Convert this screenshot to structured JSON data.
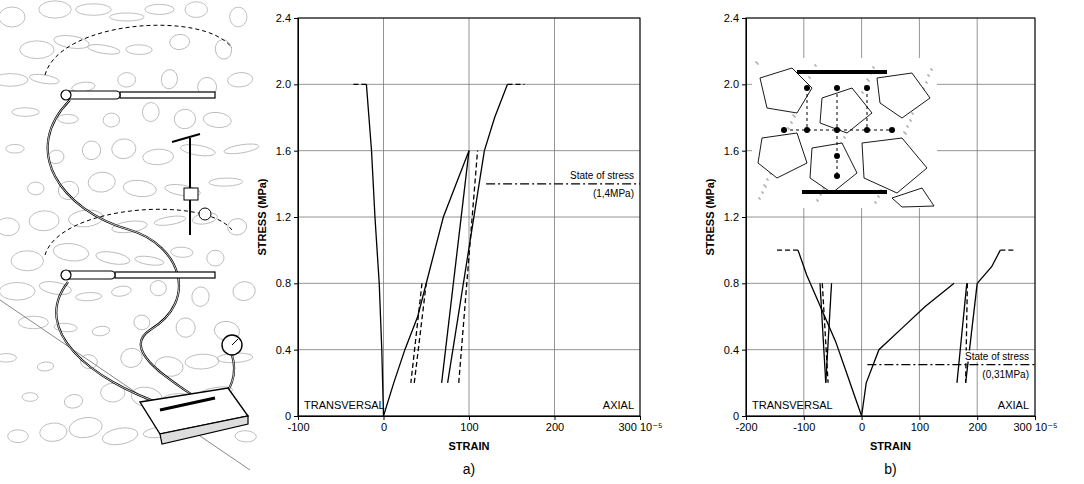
{
  "chart_data": [
    {
      "type": "line",
      "panel_label": "a)",
      "xlabel": "STRAIN",
      "ylabel": "STRESS (MPa)",
      "xlim": [
        -100,
        300
      ],
      "ylim": [
        0,
        2.4
      ],
      "xticks": [
        -100,
        0,
        100,
        200,
        {
          "value": 300,
          "label": "300 10⁻⁵"
        }
      ],
      "yticks": [
        0,
        0.4,
        0.8,
        1.2,
        1.6,
        {
          "value": 2,
          "label": "2.0"
        },
        2.4
      ],
      "grid": true,
      "annotations": [
        "TRANSVERSAL",
        "AXIAL"
      ],
      "reference_line": {
        "value": 1.4,
        "from": 120,
        "label": "State of stress",
        "sublabel": "(1,4MPa)",
        "line_style": "dashdot"
      },
      "series": [
        {
          "x": [
            0,
            -2,
            -5,
            -10,
            -14,
            -20
          ],
          "values": [
            0,
            0.4,
            0.8,
            1.2,
            1.6,
            2.0
          ],
          "color": "#000000",
          "line_style": "solid"
        },
        {
          "x": [
            -20,
            -38
          ],
          "values": [
            2.0,
            2.0
          ],
          "color": "#000000",
          "line_style": "dashed"
        },
        {
          "x": [
            0,
            12,
            25,
            40,
            55,
            70,
            85,
            100
          ],
          "values": [
            0,
            0.2,
            0.4,
            0.6,
            0.9,
            1.2,
            1.4,
            1.6
          ],
          "color": "#000000",
          "line_style": "solid"
        },
        {
          "x": [
            45,
            32
          ],
          "values": [
            0.8,
            0.2
          ],
          "color": "#000000",
          "line_style": "dashed"
        },
        {
          "x": [
            36,
            50
          ],
          "values": [
            0.2,
            0.8
          ],
          "color": "#000000",
          "line_style": "dashed"
        },
        {
          "x": [
            100,
            68
          ],
          "values": [
            1.6,
            0.2
          ],
          "color": "#000000",
          "line_style": "solid"
        },
        {
          "x": [
            75,
            118
          ],
          "values": [
            0.2,
            1.6
          ],
          "color": "#000000",
          "line_style": "solid"
        },
        {
          "x": [
            88,
            110
          ],
          "values": [
            0.2,
            1.6
          ],
          "color": "#000000",
          "line_style": "dashed"
        },
        {
          "x": [
            118,
            130,
            145
          ],
          "values": [
            1.6,
            1.8,
            2.0
          ],
          "color": "#000000",
          "line_style": "solid"
        },
        {
          "x": [
            145,
            165
          ],
          "values": [
            2.0,
            2.0
          ],
          "color": "#000000",
          "line_style": "dashed"
        }
      ]
    },
    {
      "type": "line",
      "panel_label": "b)",
      "xlabel": "STRAIN",
      "ylabel": "STRESS (MPa)",
      "xlim": [
        -200,
        300
      ],
      "ylim": [
        0,
        2.4
      ],
      "xticks": [
        -200,
        -100,
        0,
        100,
        200,
        {
          "value": 300,
          "label": "300 10⁻⁵"
        }
      ],
      "yticks": [
        0,
        0.4,
        0.8,
        1.2,
        1.6,
        {
          "value": 2,
          "label": "2.0"
        },
        2.4
      ],
      "grid": true,
      "annotations": [
        "TRANSVERSAL",
        "AXIAL"
      ],
      "reference_line": {
        "value": 0.31,
        "from": 10,
        "label": "State of stress",
        "sublabel": "(0,31MPa)",
        "line_style": "dashdot"
      },
      "series": [
        {
          "x": [
            0,
            -10,
            -25,
            -45,
            -70,
            -95,
            -110
          ],
          "values": [
            0,
            0.1,
            0.25,
            0.45,
            0.65,
            0.85,
            1.0
          ],
          "color": "#000000",
          "line_style": "solid"
        },
        {
          "x": [
            -110,
            -150
          ],
          "values": [
            1.0,
            1.0
          ],
          "color": "#000000",
          "line_style": "dashed"
        },
        {
          "x": [
            -72,
            -62
          ],
          "values": [
            0.8,
            0.2
          ],
          "color": "#000000",
          "line_style": "solid"
        },
        {
          "x": [
            -68,
            -58
          ],
          "values": [
            0.8,
            0.2
          ],
          "color": "#000000",
          "line_style": "dashed"
        },
        {
          "x": [
            -62,
            -52
          ],
          "values": [
            0.2,
            0.8
          ],
          "color": "#000000",
          "line_style": "solid"
        },
        {
          "x": [
            0,
            8,
            30,
            70,
            110,
            160
          ],
          "values": [
            0,
            0.2,
            0.4,
            0.53,
            0.66,
            0.8
          ],
          "color": "#000000",
          "line_style": "solid"
        },
        {
          "x": [
            165,
            182
          ],
          "values": [
            0.2,
            0.8
          ],
          "color": "#000000",
          "line_style": "solid"
        },
        {
          "x": [
            183,
            180
          ],
          "values": [
            0.8,
            0.2
          ],
          "color": "#000000",
          "line_style": "dashed"
        },
        {
          "x": [
            180,
            200
          ],
          "values": [
            0.2,
            0.8
          ],
          "color": "#000000",
          "line_style": "solid"
        },
        {
          "x": [
            200,
            225,
            240
          ],
          "values": [
            0.8,
            0.9,
            1.0
          ],
          "color": "#000000",
          "line_style": "solid"
        },
        {
          "x": [
            240,
            265
          ],
          "values": [
            1.0,
            1.0
          ],
          "color": "#000000",
          "line_style": "dashed"
        }
      ]
    }
  ]
}
